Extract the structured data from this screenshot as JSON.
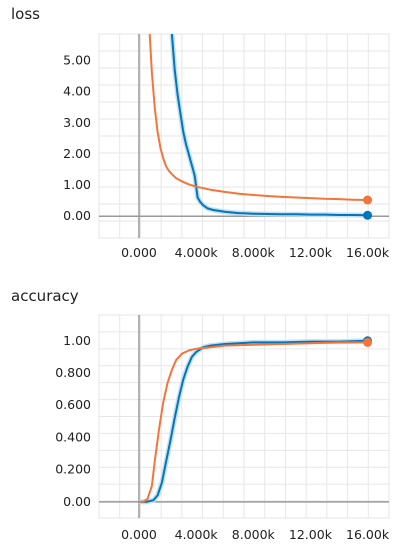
{
  "chart_data": [
    {
      "type": "line",
      "title": "loss",
      "xlabel": "",
      "ylabel": "",
      "xlim": [
        -2800,
        17500
      ],
      "ylim": [
        -0.7,
        5.85
      ],
      "xticks": [
        0,
        4000,
        8000,
        12000,
        16000
      ],
      "xtick_labels": [
        "0.000",
        "4.000k",
        "8.000k",
        "12.00k",
        "16.00k"
      ],
      "yticks": [
        0,
        1,
        2,
        3,
        4,
        5
      ],
      "ytick_labels": [
        "0.00",
        "1.00",
        "2.00",
        "3.00",
        "4.00",
        "5.00"
      ],
      "grid": true,
      "series": [
        {
          "color": "#0077bb",
          "smoothed_color": "#c5dff0",
          "x": [
            2300,
            2500,
            2700,
            2900,
            3100,
            3300,
            3450,
            3600,
            3750,
            3900,
            4100,
            4300,
            4500,
            4800,
            5200,
            5600,
            6000,
            6500,
            7000,
            7500,
            8000,
            9000,
            10000,
            11000,
            12000,
            13000,
            14000,
            15000,
            16000
          ],
          "y": [
            5.85,
            4.7,
            3.9,
            3.3,
            2.7,
            2.3,
            2.05,
            1.8,
            1.55,
            1.3,
            0.6,
            0.45,
            0.35,
            0.25,
            0.2,
            0.17,
            0.14,
            0.12,
            0.1,
            0.09,
            0.08,
            0.07,
            0.06,
            0.06,
            0.05,
            0.05,
            0.04,
            0.04,
            0.03
          ],
          "end_marker": true
        },
        {
          "color": "#f4743b",
          "x": [
            750,
            900,
            1100,
            1300,
            1500,
            1700,
            1900,
            2100,
            2300,
            2600,
            3000,
            3500,
            4000,
            4500,
            5000,
            6000,
            7000,
            8000,
            9000,
            10000,
            11000,
            12000,
            13000,
            14000,
            15000,
            16000
          ],
          "y": [
            5.85,
            4.6,
            3.5,
            2.7,
            2.2,
            1.85,
            1.6,
            1.45,
            1.35,
            1.22,
            1.12,
            1.02,
            0.95,
            0.9,
            0.85,
            0.78,
            0.72,
            0.68,
            0.65,
            0.62,
            0.6,
            0.58,
            0.56,
            0.55,
            0.53,
            0.52
          ],
          "end_marker": true
        }
      ]
    },
    {
      "type": "line",
      "title": "accuracy",
      "xlabel": "",
      "ylabel": "",
      "xlim": [
        -2800,
        17500
      ],
      "ylim": [
        -0.1,
        1.16
      ],
      "xticks": [
        0,
        4000,
        8000,
        12000,
        16000
      ],
      "xtick_labels": [
        "0.000",
        "4.000k",
        "8.000k",
        "12.00k",
        "16.00k"
      ],
      "yticks": [
        0,
        0.2,
        0.4,
        0.6,
        0.8,
        1.0
      ],
      "ytick_labels": [
        "0.00",
        "0.200",
        "0.400",
        "0.600",
        "0.800",
        "1.00"
      ],
      "grid": true,
      "series": [
        {
          "color": "#0077bb",
          "smoothed_color": "#c5dff0",
          "x": [
            0,
            500,
            1000,
            1300,
            1600,
            1900,
            2200,
            2500,
            2800,
            3100,
            3400,
            3700,
            4000,
            4500,
            5000,
            6000,
            7000,
            8000,
            10000,
            12000,
            14000,
            16000
          ],
          "y": [
            0.0,
            0.0,
            0.01,
            0.04,
            0.12,
            0.25,
            0.38,
            0.52,
            0.65,
            0.76,
            0.84,
            0.9,
            0.93,
            0.96,
            0.97,
            0.98,
            0.985,
            0.99,
            0.99,
            0.995,
            0.995,
            1.0
          ],
          "end_marker": true
        },
        {
          "color": "#f4743b",
          "x": [
            0,
            300,
            600,
            900,
            1100,
            1400,
            1700,
            2000,
            2300,
            2600,
            3000,
            3500,
            4000,
            5000,
            6000,
            8000,
            10000,
            12000,
            14000,
            16000
          ],
          "y": [
            0.0,
            0.0,
            0.02,
            0.1,
            0.25,
            0.45,
            0.62,
            0.74,
            0.82,
            0.88,
            0.92,
            0.94,
            0.95,
            0.96,
            0.97,
            0.975,
            0.98,
            0.985,
            0.99,
            0.99
          ],
          "end_marker": true
        }
      ]
    }
  ]
}
